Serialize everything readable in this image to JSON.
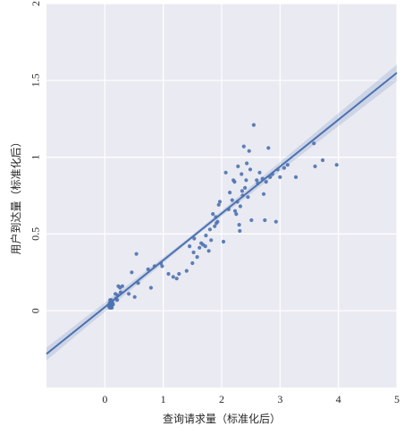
{
  "chart_data": {
    "type": "scatter",
    "title": "",
    "xlabel": "查询请求量（标准化后）",
    "ylabel": "用户到达量（标准化后）",
    "xlim": [
      -1,
      5
    ],
    "ylim": [
      -0.5,
      2
    ],
    "xticks": [
      0,
      1,
      2,
      3,
      4,
      5
    ],
    "xtick_labels": [
      "0",
      "1",
      "2",
      "3",
      "4",
      "5"
    ],
    "yticks": [
      0,
      0.5,
      1,
      1.5,
      2
    ],
    "ytick_labels": [
      "0",
      "0.5",
      "1",
      "1.5",
      "2"
    ],
    "y_tick_labels_rotated": true,
    "grid": true,
    "background_color": "#eaeaf2",
    "grid_color": "#ffffff",
    "point_color": "#4c72b0",
    "line_color": "#4c72b0",
    "band_color": "#4c72b0",
    "points": [
      [
        0.08,
        0.02
      ],
      [
        0.09,
        0.04
      ],
      [
        0.1,
        0.05
      ],
      [
        0.11,
        0.03
      ],
      [
        0.12,
        0.06
      ],
      [
        0.09,
        0.07
      ],
      [
        0.1,
        0.02
      ],
      [
        0.12,
        0.04
      ],
      [
        0.08,
        0.05
      ],
      [
        0.11,
        0.07
      ],
      [
        0.13,
        0.05
      ],
      [
        0.07,
        0.03
      ],
      [
        0.1,
        0.06
      ],
      [
        0.12,
        0.02
      ],
      [
        0.14,
        0.04
      ],
      [
        0.09,
        0.03
      ],
      [
        0.18,
        0.11
      ],
      [
        0.19,
        0.08
      ],
      [
        0.22,
        0.1
      ],
      [
        0.21,
        0.07
      ],
      [
        0.23,
        0.16
      ],
      [
        0.26,
        0.15
      ],
      [
        0.27,
        0.12
      ],
      [
        0.3,
        0.16
      ],
      [
        0.41,
        0.11
      ],
      [
        0.46,
        0.25
      ],
      [
        0.51,
        0.09
      ],
      [
        0.54,
        0.37
      ],
      [
        0.57,
        0.18
      ],
      [
        0.74,
        0.27
      ],
      [
        0.79,
        0.15
      ],
      [
        0.85,
        0.29
      ],
      [
        0.96,
        0.31
      ],
      [
        0.98,
        0.29
      ],
      [
        1.09,
        0.24
      ],
      [
        1.17,
        0.22
      ],
      [
        1.23,
        0.21
      ],
      [
        1.27,
        0.24
      ],
      [
        1.4,
        0.26
      ],
      [
        1.45,
        0.42
      ],
      [
        1.5,
        0.31
      ],
      [
        1.52,
        0.38
      ],
      [
        1.53,
        0.47
      ],
      [
        1.58,
        0.35
      ],
      [
        1.62,
        0.41
      ],
      [
        1.65,
        0.44
      ],
      [
        1.68,
        0.43
      ],
      [
        1.72,
        0.42
      ],
      [
        1.73,
        0.49
      ],
      [
        1.78,
        0.39
      ],
      [
        1.8,
        0.53
      ],
      [
        1.82,
        0.46
      ],
      [
        1.85,
        0.63
      ],
      [
        1.88,
        0.55
      ],
      [
        1.9,
        0.61
      ],
      [
        1.91,
        0.57
      ],
      [
        1.93,
        0.58
      ],
      [
        1.95,
        0.69
      ],
      [
        1.97,
        0.71
      ],
      [
        2.03,
        0.45
      ],
      [
        2.07,
        0.9
      ],
      [
        2.12,
        0.66
      ],
      [
        2.14,
        0.77
      ],
      [
        2.18,
        0.72
      ],
      [
        2.2,
        0.85
      ],
      [
        2.22,
        0.84
      ],
      [
        2.23,
        0.65
      ],
      [
        2.25,
        0.63
      ],
      [
        2.27,
        0.71
      ],
      [
        2.28,
        0.94
      ],
      [
        2.3,
        0.56
      ],
      [
        2.31,
        0.52
      ],
      [
        2.32,
        0.68
      ],
      [
        2.34,
        0.89
      ],
      [
        2.35,
        0.78
      ],
      [
        2.36,
        0.75
      ],
      [
        2.38,
        1.07
      ],
      [
        2.4,
        0.8
      ],
      [
        2.42,
        0.85
      ],
      [
        2.43,
        0.96
      ],
      [
        2.45,
        0.74
      ],
      [
        2.47,
        1.04
      ],
      [
        2.49,
        0.92
      ],
      [
        2.51,
        0.59
      ],
      [
        2.55,
        1.21
      ],
      [
        2.6,
        0.85
      ],
      [
        2.62,
        0.83
      ],
      [
        2.65,
        0.9
      ],
      [
        2.7,
        0.86
      ],
      [
        2.72,
        0.76
      ],
      [
        2.74,
        0.59
      ],
      [
        2.76,
        0.84
      ],
      [
        2.8,
        1.06
      ],
      [
        2.83,
        0.87
      ],
      [
        2.87,
        0.89
      ],
      [
        2.93,
        0.58
      ],
      [
        2.96,
        0.92
      ],
      [
        3.0,
        0.87
      ],
      [
        3.07,
        0.93
      ],
      [
        3.13,
        0.95
      ],
      [
        3.27,
        0.87
      ],
      [
        3.58,
        1.09
      ],
      [
        3.6,
        0.94
      ],
      [
        3.73,
        0.98
      ],
      [
        3.97,
        0.95
      ]
    ],
    "regression": {
      "slope": 0.305,
      "intercept": 0.024,
      "ci_halfwidth_at_mean": 0.012,
      "ci_slope_growth": 0.012,
      "ci_center_x": 1.5
    }
  }
}
